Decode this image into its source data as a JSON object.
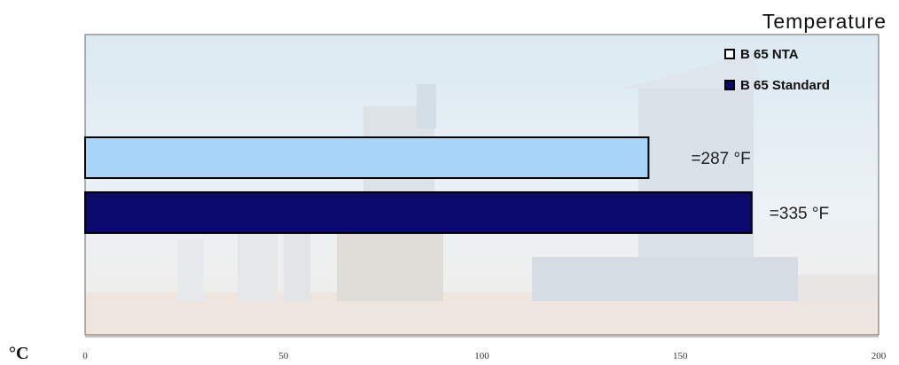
{
  "chart_data": {
    "type": "bar",
    "orientation": "horizontal",
    "title": "Temperature",
    "unit_label": "°C",
    "xlim": [
      0,
      200
    ],
    "ticks": [
      0,
      50,
      100,
      150,
      200
    ],
    "series": [
      {
        "name": "B 65 NTA",
        "value": 142,
        "label": "=287 °F",
        "color": "#a8d4f7"
      },
      {
        "name": "B 65 Standard",
        "value": 168,
        "label": "=335 °F",
        "color": "#0a0a6e"
      }
    ],
    "legend_position": "top-right",
    "background": "asphalt plant photo"
  }
}
